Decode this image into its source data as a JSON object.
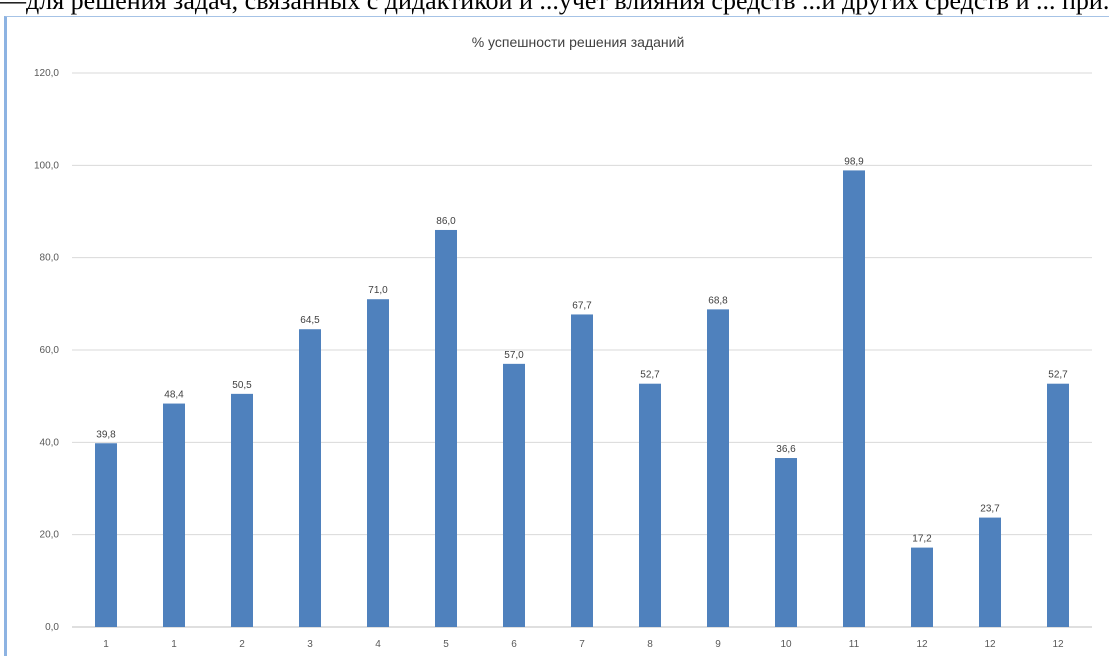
{
  "top_text": "—для решения задач, связанных с дидактикой и ...учет влияния средств ...и других средств и ... при...",
  "chart_data": {
    "type": "bar",
    "title": "% успешности решения заданий",
    "xlabel": "",
    "ylabel": "",
    "categories": [
      "1",
      "1",
      "2",
      "3",
      "4",
      "5",
      "6",
      "7",
      "8",
      "9",
      "10",
      "11",
      "12",
      "12",
      "12"
    ],
    "values": [
      39.8,
      48.4,
      50.5,
      64.5,
      71.0,
      86.0,
      57.0,
      67.7,
      52.7,
      68.8,
      36.6,
      98.9,
      17.2,
      23.7,
      52.7
    ],
    "value_labels": [
      "39,8",
      "48,4",
      "50,5",
      "64,5",
      "71,0",
      "86,0",
      "57,0",
      "67,7",
      "52,7",
      "68,8",
      "36,6",
      "98,9",
      "17,2",
      "23,7",
      "52,7"
    ],
    "ylim": [
      0,
      120
    ],
    "yticks": [
      "0,0",
      "20,0",
      "40,0",
      "60,0",
      "80,0",
      "100,0",
      "120,0"
    ],
    "grid": true,
    "legend": "none",
    "colors": {
      "bar": "#4f81bd",
      "grid": "#d9d9d9",
      "axis": "#bfbfbf"
    }
  }
}
